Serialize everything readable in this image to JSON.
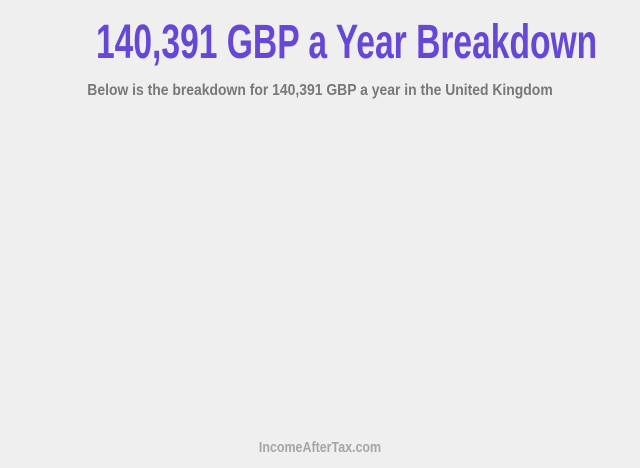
{
  "header": {
    "title": "140,391 GBP a Year Breakdown",
    "subtitle": "Below is the breakdown for 140,391 GBP a year in the United Kingdom"
  },
  "footer": {
    "site": "IncomeAfterTax.com"
  },
  "colors": {
    "background": "#EFEFEF",
    "title": "#6747D6",
    "subtitle": "#787878",
    "footer": "#A5A5A5"
  }
}
